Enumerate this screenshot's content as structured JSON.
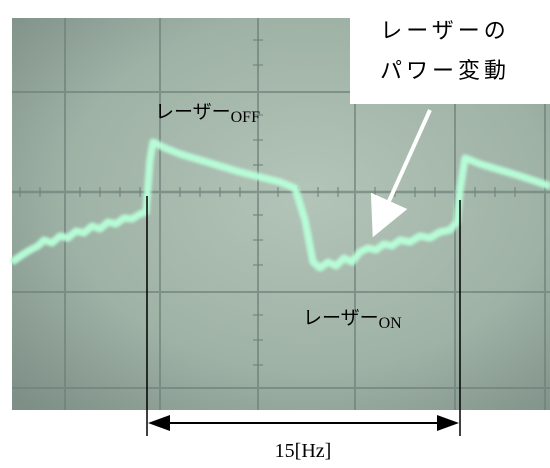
{
  "annotations": {
    "power_label": [
      "レーザーの",
      "パワー変動"
    ],
    "off_label": {
      "text": "レーザー",
      "state": "OFF"
    },
    "on_label": {
      "text": "レーザー",
      "state": "ON"
    },
    "period": "15[Hz]"
  }
}
